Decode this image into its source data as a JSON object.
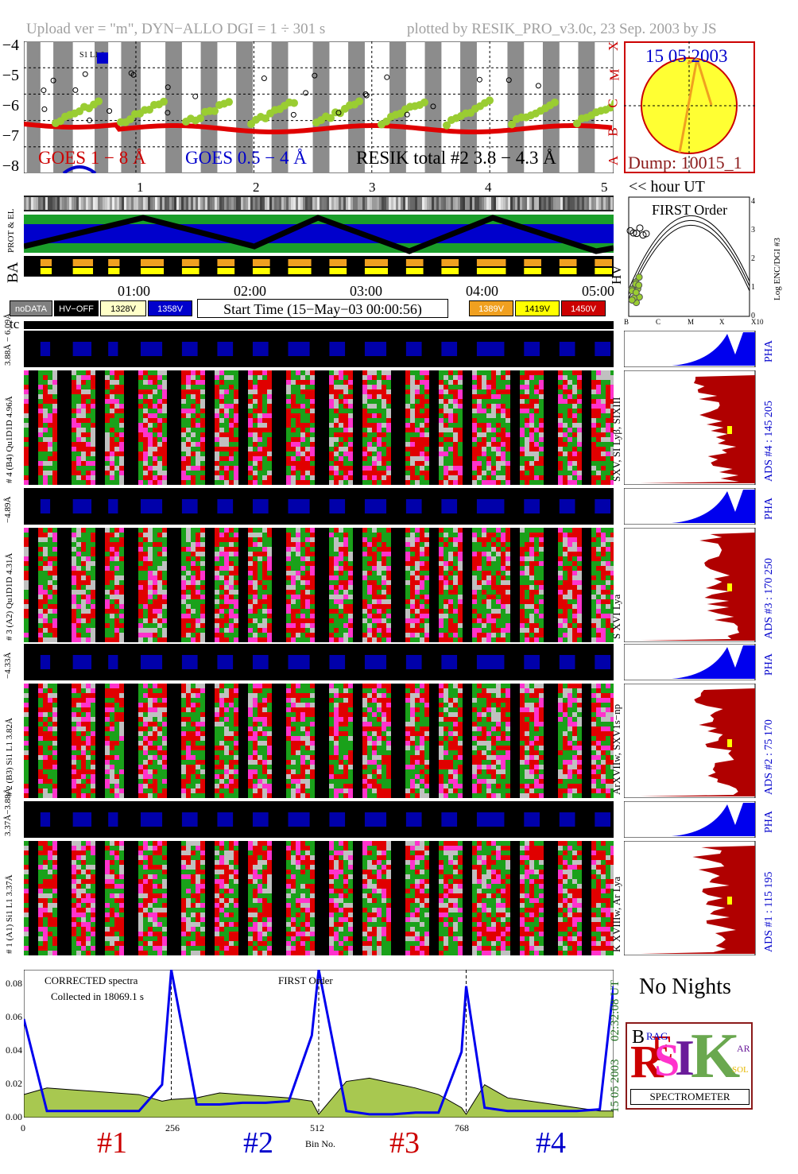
{
  "header": {
    "upload_text": "Upload ver = \"m\", DYN−ALLO DGI =   1 ÷ 301 s",
    "plotted_text": "plotted by RESIK_PRO_v3.0c, 23 Sep. 2003 by JS"
  },
  "goes_panel": {
    "y_ticks": [
      "−4",
      "−5",
      "−6",
      "−7",
      "−8"
    ],
    "class_letters": [
      "X",
      "M",
      "C",
      "B",
      "A"
    ],
    "goes_long_label": "GOES 1 − 8 Å",
    "goes_short_label": "GOES 0.5 − 4 Å",
    "resik_label": "RESIK total #2  3.8 − 4.3 Å",
    "hour_ticks": [
      "1",
      "2",
      "3",
      "4",
      "5"
    ],
    "hour_ut_label": "<< hour UT",
    "legend_marker": "S1 L1 0"
  },
  "sun_panel": {
    "date": "15 05 2003",
    "dump": "Dump: 10015_1"
  },
  "status_panel": {
    "labels": [
      "PROT & EL",
      "BA",
      "HV"
    ],
    "time_ticks": [
      "01:00",
      "02:00",
      "03:00",
      "04:00",
      "05:00"
    ]
  },
  "first_order_panel": {
    "title": "FIRST Order",
    "y_axis_label": "Log ENC/DGI #3",
    "y_ticks": [
      "0",
      "1",
      "2",
      "3",
      "4"
    ],
    "x_ticks": [
      "B",
      "C",
      "M",
      "X",
      "X10"
    ]
  },
  "buttons": [
    {
      "label": "noDATA",
      "bg": "#808080",
      "fg": "#ffffff"
    },
    {
      "label": "HV−OFF",
      "bg": "#000000",
      "fg": "#ffffff"
    },
    {
      "label": "1328V",
      "bg": "#ffffc8",
      "fg": "#000000"
    },
    {
      "label": "1358V",
      "bg": "#0000cc",
      "fg": "#ffffff"
    },
    {
      "label": "1389V",
      "bg": "#f0a020",
      "fg": "#ffffff"
    },
    {
      "label": "1419V",
      "bg": "#ffff00",
      "fg": "#000000"
    },
    {
      "label": "1450V",
      "bg": "#cc0000",
      "fg": "#ffffff"
    }
  ],
  "start_time": "Start Time (15−May−03 00:00:56)",
  "tc_label": "tc",
  "channels": [
    {
      "pha_left": "3.88Å − 6.09Å",
      "main_left": "# 4 (B4) Qu1D1D 4.96Å",
      "spec_right": "SXV, SI Lyβ, SIXIII",
      "ads": "ADS #4 :  145 205",
      "pha": "PHA"
    },
    {
      "pha_left": "−4.89Å",
      "main_left": "# 3 (A2) Qu1D1D  4.31Å",
      "spec_right": "S XVI Lya",
      "ads": "ADS #3 :  170 250",
      "pha": "PHA"
    },
    {
      "pha_left": "−4.33Å",
      "main_left": "# 2 (B3) Si1 L1  3.82Å",
      "spec_right": "ArXVIIw, SXV1s−np",
      "ads": "ADS #2 :   75 170",
      "pha": "PHA"
    },
    {
      "pha_left": "3.37Å−3.88Å",
      "main_left": "# 1 (A1) Si1 L1  3.37Å",
      "spec_right": "K XVIIIw, Ar Lya",
      "ads": "ADS #1 :  115 195",
      "pha": "PHA"
    }
  ],
  "spectrum_panel": {
    "corrected_label": "CORRECTED spectra",
    "collected_label": "Collected in 18069.1 s",
    "first_order_label": "FIRST Order",
    "y_ticks": [
      "0.00",
      "0.02",
      "0.04",
      "0.06",
      "0.08"
    ],
    "x_ticks": [
      "0",
      "256",
      "512",
      "768"
    ],
    "x_label": "Bin No.",
    "side_date": "15 05 2003",
    "side_time": "02:32:08 UT",
    "section_labels": [
      "#1",
      "#2",
      "#3",
      "#4"
    ],
    "section_colors": [
      "#cc0000",
      "#0000cc",
      "#cc0000",
      "#0000cc"
    ]
  },
  "no_nights": "No Nights",
  "logo": {
    "letters": [
      "R",
      "E",
      "S",
      "I",
      "K"
    ],
    "small_letters": [
      "B",
      "RAG",
      "SOL",
      "AR"
    ],
    "spectrometer": "SPECTROMETER"
  },
  "chart_data": {
    "type": "line",
    "title": "",
    "xlabel": "Bin No.",
    "ylabel": "",
    "xlim": [
      0,
      1024
    ],
    "ylim": [
      0,
      0.09
    ],
    "series": [
      {
        "name": "CORRECTED spectra",
        "x": [
          0,
          40,
          80,
          120,
          160,
          200,
          240,
          256,
          300,
          340,
          380,
          420,
          460,
          500,
          512,
          560,
          600,
          640,
          680,
          720,
          760,
          768,
          800,
          840,
          880,
          920,
          960,
          1000,
          1024
        ],
        "values": [
          0.014,
          0.018,
          0.017,
          0.016,
          0.015,
          0.014,
          0.01,
          0.011,
          0.012,
          0.015,
          0.014,
          0.013,
          0.012,
          0.01,
          0.002,
          0.022,
          0.024,
          0.021,
          0.018,
          0.014,
          0.006,
          0.002,
          0.02,
          0.012,
          0.01,
          0.008,
          0.006,
          0.004,
          0.004
        ]
      },
      {
        "name": "FIRST Order",
        "x": [
          0,
          40,
          80,
          120,
          160,
          200,
          240,
          256,
          300,
          340,
          380,
          420,
          460,
          500,
          512,
          560,
          600,
          640,
          680,
          720,
          760,
          768,
          800,
          840,
          880,
          920,
          960,
          1000,
          1024
        ],
        "values": [
          0.06,
          0.004,
          0.004,
          0.004,
          0.004,
          0.004,
          0.02,
          0.09,
          0.008,
          0.008,
          0.009,
          0.009,
          0.01,
          0.05,
          0.09,
          0.004,
          0.002,
          0.002,
          0.003,
          0.003,
          0.04,
          0.08,
          0.006,
          0.004,
          0.004,
          0.004,
          0.004,
          0.005,
          0.08
        ]
      }
    ]
  }
}
